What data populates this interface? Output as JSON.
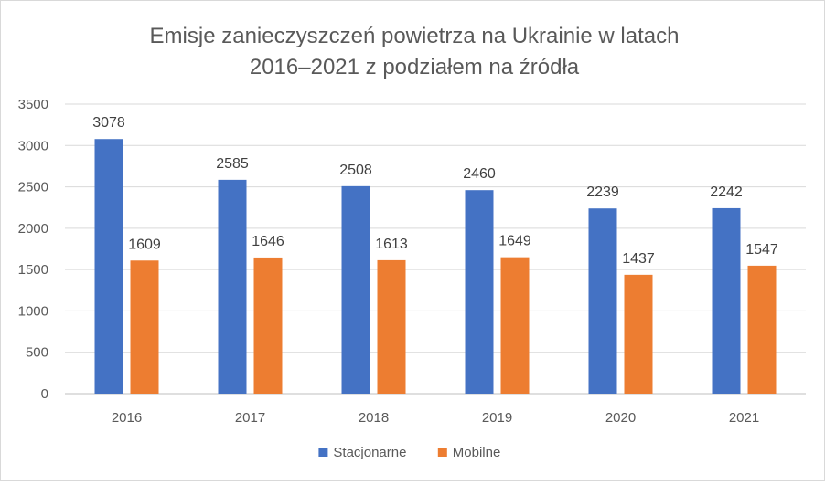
{
  "chart_data": {
    "type": "bar",
    "title": "Emisje zanieczyszczeń powietrza na Ukrainie w latach",
    "subtitle": "2016–2021 z podziałem na źródła",
    "xlabel": "",
    "ylabel": "",
    "categories": [
      "2016",
      "2017",
      "2018",
      "2019",
      "2020",
      "2021"
    ],
    "series": [
      {
        "name": "Stacjonarne",
        "color": "#4472C4",
        "values": [
          3078,
          2585,
          2508,
          2460,
          2239,
          2242
        ]
      },
      {
        "name": "Mobilne",
        "color": "#ED7D31",
        "values": [
          1609,
          1646,
          1613,
          1649,
          1437,
          1547
        ]
      }
    ],
    "ylim": [
      0,
      3500
    ],
    "yticks": [
      0,
      500,
      1000,
      1500,
      2000,
      2500,
      3000,
      3500
    ],
    "grid": true,
    "legend_position": "bottom",
    "data_labels": true
  }
}
